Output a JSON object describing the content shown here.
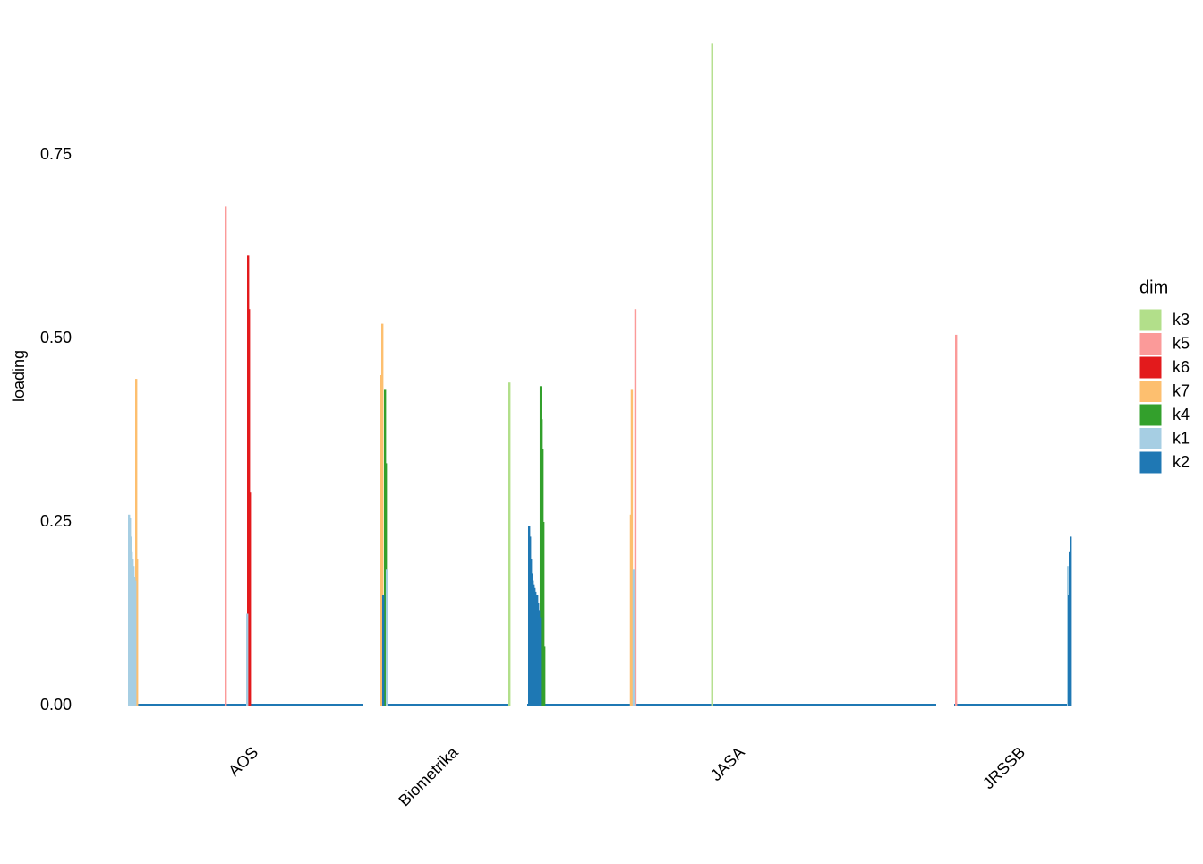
{
  "chart_data": {
    "type": "bar",
    "ylabel": "loading",
    "legend_title": "dim",
    "ylim": [
      0,
      0.95
    ],
    "yticks": [
      {
        "value": 0,
        "label": "0.00"
      },
      {
        "value": 0.25,
        "label": "0.25"
      },
      {
        "value": 0.5,
        "label": "0.50"
      },
      {
        "value": 0.75,
        "label": "0.75"
      }
    ],
    "facets": [
      {
        "label": "AOS",
        "xlim": [
          0,
          131
        ]
      },
      {
        "label": "Biometrika",
        "xlim": [
          0,
          73
        ]
      },
      {
        "label": "JASA",
        "xlim": [
          0,
          229
        ]
      },
      {
        "label": "JRSSB",
        "xlim": [
          0,
          65
        ]
      }
    ],
    "series": [
      {
        "name": "k3",
        "color": "#b2df8a",
        "facet": [
          1,
          2
        ],
        "x": [
          72,
          103
        ],
        "values": [
          0.44,
          0.902
        ]
      },
      {
        "name": "k5",
        "color": "#fb9a99",
        "facet": [
          0,
          2,
          3
        ],
        "x": [
          54,
          60,
          0.5
        ],
        "values": [
          0.68,
          0.54,
          0.505
        ]
      },
      {
        "name": "k6",
        "color": "#e31a1c",
        "facet": [
          0,
          0,
          0
        ],
        "x": [
          66.5,
          67,
          67.5
        ],
        "values": [
          0.613,
          0.54,
          0.29
        ]
      },
      {
        "name": "k7",
        "color": "#fdbf6f",
        "facet": [
          0,
          0,
          1,
          1,
          2,
          2
        ],
        "x": [
          4,
          4.5,
          0,
          0.5,
          57.5,
          58
        ],
        "values": [
          0.445,
          0.2,
          0.45,
          0.52,
          0.26,
          0.43
        ]
      },
      {
        "name": "k4",
        "color": "#33a02c",
        "facet": [
          1,
          1,
          2,
          2,
          2,
          2,
          2
        ],
        "x": [
          2,
          2.5,
          7,
          7.5,
          8,
          8.5,
          9
        ],
        "values": [
          0.43,
          0.33,
          0.435,
          0.39,
          0.35,
          0.25,
          0.08
        ]
      },
      {
        "name": "k1",
        "color": "#a6cee3",
        "facet": [
          0,
          0,
          0,
          0,
          0,
          0,
          0,
          0,
          0,
          1,
          2,
          3
        ],
        "x": [
          0,
          0.5,
          1,
          1.5,
          2,
          2.5,
          3,
          3.5,
          66,
          3,
          59,
          63
        ],
        "values": [
          0.26,
          0.255,
          0.23,
          0.21,
          0.2,
          0.19,
          0.175,
          0.17,
          0.125,
          0.185,
          0.185,
          0.19
        ]
      },
      {
        "name": "k2",
        "color": "#1f78b4",
        "facet": [
          1,
          2,
          2,
          2,
          2,
          2,
          2,
          2,
          2,
          2,
          2,
          2,
          2,
          2,
          3,
          3,
          3
        ],
        "x": [
          1,
          0.5,
          1,
          1.5,
          2,
          2.5,
          3,
          3.5,
          4,
          4.5,
          5,
          5.5,
          6,
          6.5,
          63.5,
          64,
          64.5
        ],
        "values": [
          0.15,
          0.245,
          0.23,
          0.2,
          0.18,
          0.17,
          0.165,
          0.16,
          0.155,
          0.15,
          0.15,
          0.14,
          0.13,
          0.12,
          0.15,
          0.21,
          0.23
        ]
      }
    ]
  }
}
